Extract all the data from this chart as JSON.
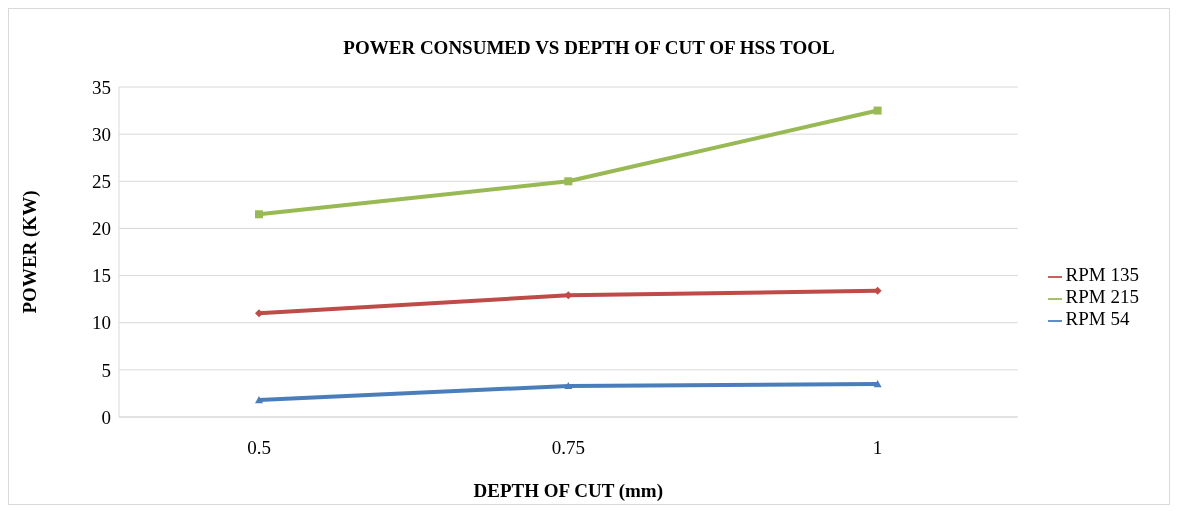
{
  "chart_data": {
    "type": "line",
    "title": "POWER CONSUMED VS DEPTH OF CUT OF HSS TOOL",
    "xlabel": "DEPTH OF CUT (mm)",
    "ylabel": "POWER (KW)",
    "categories": [
      "0.5",
      "0.75",
      "1"
    ],
    "series": [
      {
        "name": "RPM 54",
        "color": "#4a7ebb",
        "marker": "triangle",
        "values": [
          1.8,
          3.3,
          3.5
        ]
      },
      {
        "name": "RPM 135",
        "color": "#be4b48",
        "marker": "diamond",
        "values": [
          11.0,
          12.9,
          13.4
        ]
      },
      {
        "name": "RPM 215",
        "color": "#98b954",
        "marker": "square",
        "values": [
          21.5,
          25.0,
          32.5
        ]
      }
    ],
    "ylim": [
      0,
      35
    ],
    "yticks": [
      0,
      5,
      10,
      15,
      20,
      25,
      30,
      35
    ],
    "grid": "y",
    "legend": "right"
  }
}
